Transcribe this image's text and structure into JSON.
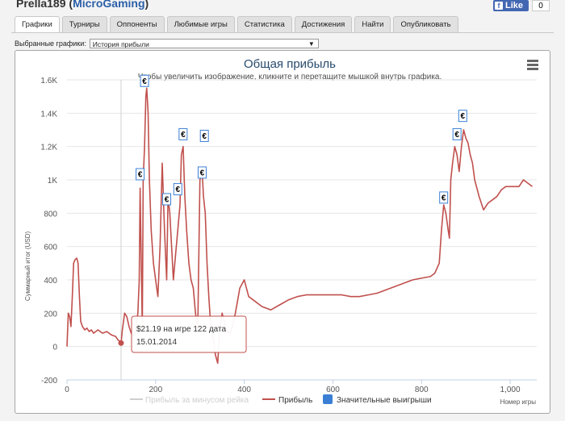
{
  "header": {
    "player_name": "Prella189",
    "network_open": " (",
    "network": "MicroGaming",
    "network_close": ")",
    "fb_like_icon": "f",
    "fb_like_label": "Like",
    "fb_count": "0"
  },
  "tabs": [
    {
      "label": "Графики",
      "active": true
    },
    {
      "label": "Турниры"
    },
    {
      "label": "Оппоненты"
    },
    {
      "label": "Любимые игры"
    },
    {
      "label": "Статистика"
    },
    {
      "label": "Достижения"
    },
    {
      "label": "Найти"
    },
    {
      "label": "Опубликовать"
    }
  ],
  "selector": {
    "label": "Выбранные графики:",
    "value": "История прибыли",
    "arrow": "▼"
  },
  "chart_data": {
    "type": "line",
    "title": "Общая прибыль",
    "subtitle": "Чтобы увеличить изображение, кликните и перетащите мышкой внутрь графика.",
    "xlabel": "Номер игры",
    "ylabel": "Суммарный итог (USD)",
    "xlim": [
      0,
      1060
    ],
    "ylim": [
      -200,
      1600
    ],
    "x_ticks": [
      0,
      200,
      400,
      600,
      800,
      1000
    ],
    "x_tick_labels": [
      "0",
      "200",
      "400",
      "600",
      "800",
      "1,000"
    ],
    "y_ticks": [
      -200,
      0,
      200,
      400,
      600,
      800,
      1000,
      1200,
      1400,
      1600
    ],
    "y_tick_labels": [
      "-200",
      "0",
      "200",
      "400",
      "600",
      "800",
      "1K",
      "1.2K",
      "1.4K",
      "1.6K"
    ],
    "grid": "horizontal",
    "legend_position": "bottom",
    "colors": {
      "profit": "#c0504d",
      "rake": "#cfcfcf",
      "wins": "#3a7fd5"
    },
    "series": [
      {
        "name": "Прибыль",
        "x": [
          0,
          3,
          6,
          9,
          12,
          15,
          18,
          22,
          25,
          28,
          31,
          35,
          40,
          45,
          50,
          55,
          60,
          70,
          80,
          90,
          100,
          110,
          115,
          120,
          122,
          125,
          130,
          135,
          140,
          145,
          150,
          155,
          160,
          163,
          165,
          167,
          170,
          172,
          175,
          178,
          180,
          183,
          186,
          190,
          195,
          200,
          205,
          210,
          215,
          220,
          225,
          228,
          232,
          236,
          240,
          245,
          250,
          255,
          258,
          262,
          266,
          270,
          275,
          280,
          285,
          290,
          295,
          300,
          305,
          308,
          312,
          316,
          320,
          325,
          330,
          335,
          340,
          345,
          350,
          355,
          360,
          365,
          370,
          380,
          390,
          400,
          410,
          420,
          440,
          460,
          480,
          500,
          520,
          540,
          560,
          580,
          600,
          620,
          640,
          660,
          680,
          700,
          720,
          740,
          760,
          780,
          800,
          820,
          830,
          840,
          845,
          850,
          855,
          860,
          863,
          866,
          870,
          875,
          880,
          885,
          890,
          895,
          900,
          905,
          910,
          915,
          920,
          930,
          940,
          950,
          960,
          970,
          980,
          990,
          1000,
          1010,
          1020,
          1030,
          1040,
          1050
        ],
        "y": [
          0,
          200,
          180,
          120,
          300,
          500,
          520,
          530,
          500,
          300,
          150,
          120,
          100,
          110,
          90,
          100,
          80,
          100,
          80,
          90,
          70,
          60,
          40,
          30,
          21,
          100,
          200,
          180,
          120,
          80,
          60,
          100,
          200,
          400,
          950,
          600,
          100,
          1000,
          1200,
          1500,
          1550,
          1400,
          1000,
          700,
          500,
          400,
          300,
          600,
          1100,
          700,
          400,
          900,
          800,
          600,
          400,
          550,
          700,
          850,
          1150,
          1200,
          900,
          700,
          500,
          400,
          350,
          200,
          100,
          1000,
          1050,
          900,
          800,
          500,
          300,
          100,
          50,
          -50,
          -100,
          100,
          200,
          150,
          100,
          80,
          90,
          200,
          350,
          400,
          300,
          280,
          240,
          220,
          250,
          280,
          300,
          310,
          310,
          310,
          310,
          310,
          300,
          300,
          310,
          320,
          340,
          360,
          380,
          400,
          410,
          420,
          440,
          500,
          700,
          850,
          800,
          700,
          650,
          1000,
          1100,
          1200,
          1150,
          1050,
          1200,
          1300,
          1250,
          1220,
          1150,
          1100,
          1000,
          900,
          820,
          860,
          880,
          900,
          940,
          960,
          960,
          960,
          960,
          1000,
          980,
          960
        ]
      }
    ],
    "big_win_markers": [
      {
        "x": 175,
        "y": 1560
      },
      {
        "x": 165,
        "y": 1000
      },
      {
        "x": 225,
        "y": 850
      },
      {
        "x": 250,
        "y": 910
      },
      {
        "x": 262,
        "y": 1240
      },
      {
        "x": 305,
        "y": 1010
      },
      {
        "x": 310,
        "y": 1230
      },
      {
        "x": 850,
        "y": 860
      },
      {
        "x": 880,
        "y": 1240
      },
      {
        "x": 893,
        "y": 1350
      }
    ],
    "marker_symbol": "€",
    "crosshair_x": 122,
    "tooltip": {
      "point": {
        "x": 122,
        "y": 21
      },
      "line1": "$21.19 на игре 122 дата",
      "line2": "15.01.2014"
    },
    "legend": [
      {
        "name": "Прибыль за минусом рейка"
      },
      {
        "name": "Прибыль"
      },
      {
        "name": "Значительные выигрыши"
      }
    ],
    "menu_icon": "≡"
  }
}
